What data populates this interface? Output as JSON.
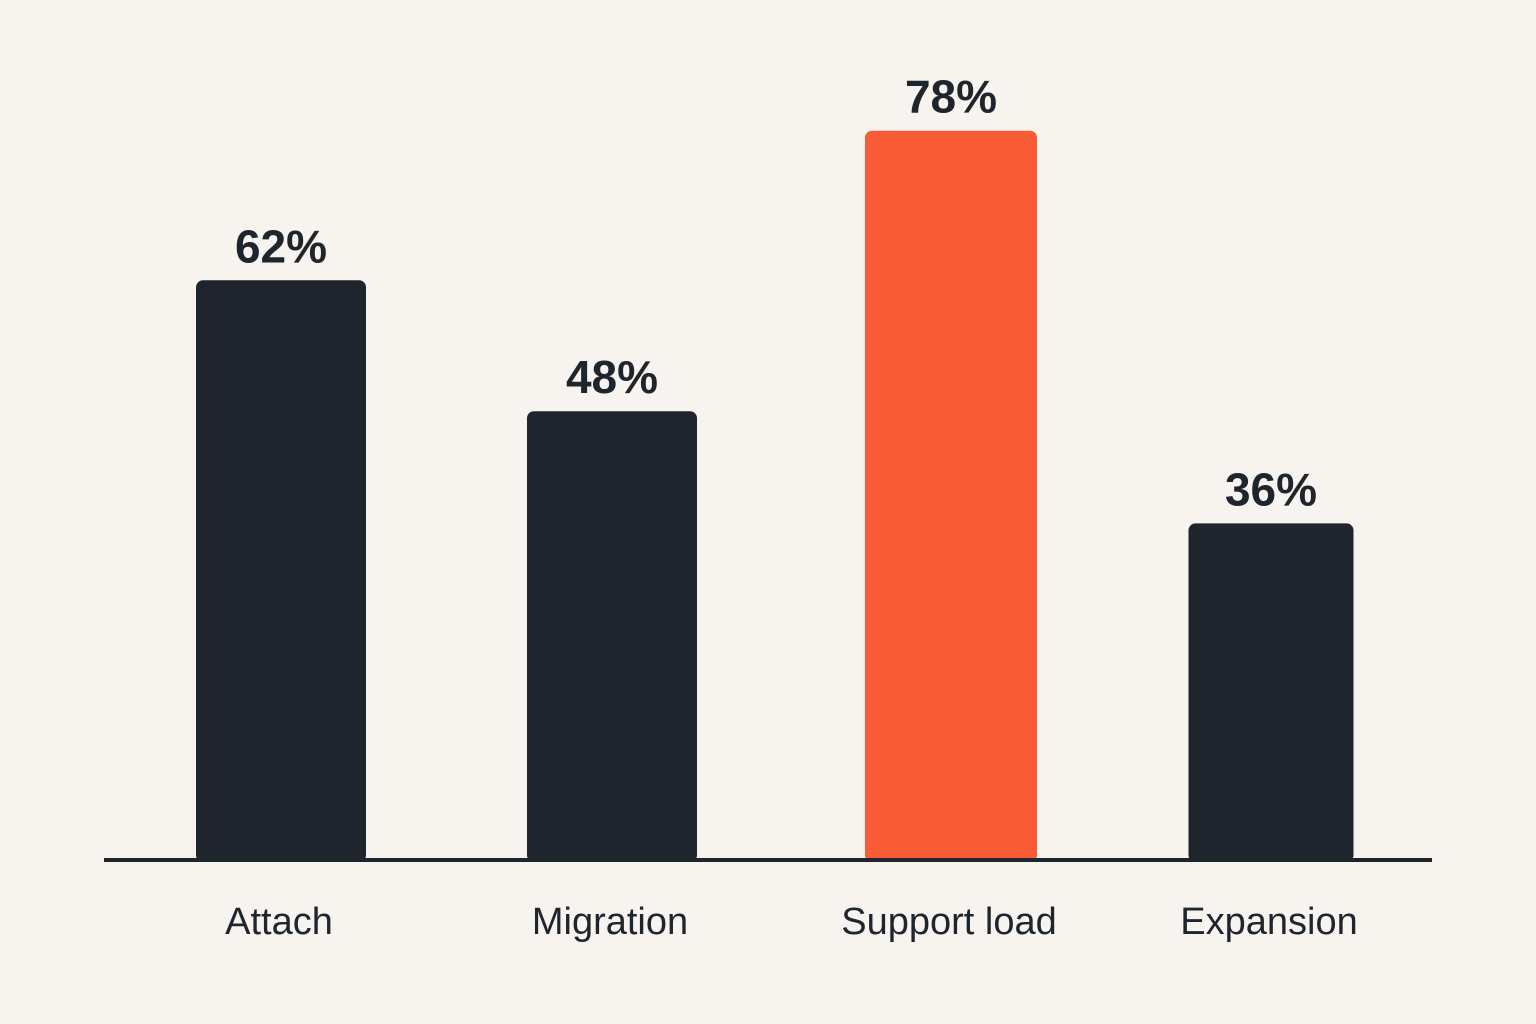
{
  "chart_data": {
    "type": "bar",
    "title": "",
    "xlabel": "",
    "ylabel": "",
    "categories": [
      "Attach",
      "Migration",
      "Support load",
      "Expansion"
    ],
    "values": [
      62,
      48,
      78,
      36
    ],
    "value_labels": [
      "62%",
      "48%",
      "78%",
      "36%"
    ],
    "unit": "%",
    "ylim": [
      0,
      100
    ],
    "grid": false,
    "legend": "none",
    "highlight_index": 2,
    "colors": {
      "bar": "#1f252d",
      "highlight": "#f95b36",
      "axis": "#1f252d",
      "text": "#1f252d",
      "background": "#f7f3ee"
    }
  }
}
